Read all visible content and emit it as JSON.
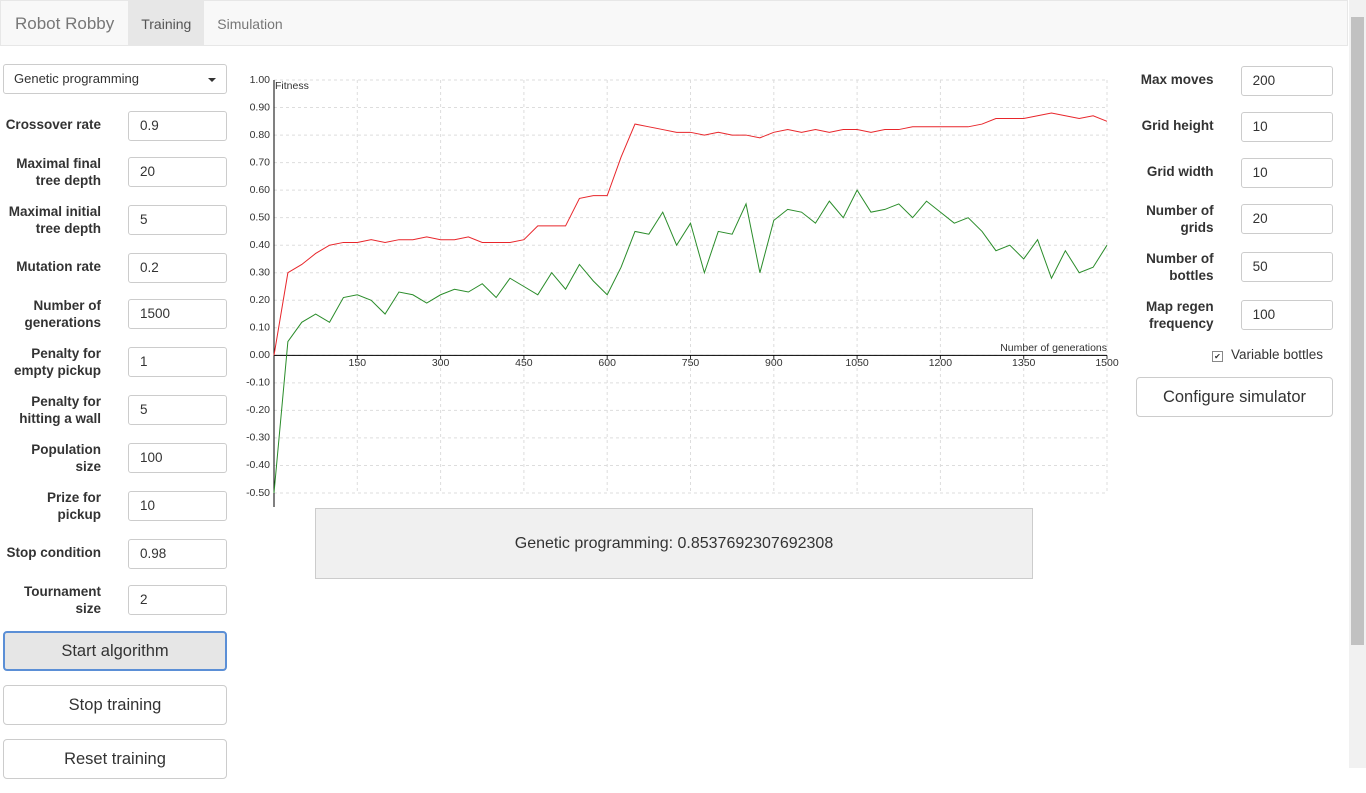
{
  "navbar": {
    "brand": "Robot Robby",
    "tabs": [
      "Training",
      "Simulation"
    ]
  },
  "algorithm_select": "Genetic programming",
  "left_params": [
    [
      "Crossover rate",
      "0.9"
    ],
    [
      "Maximal final tree depth",
      "20"
    ],
    [
      "Maximal initial tree depth",
      "5"
    ],
    [
      "Mutation rate",
      "0.2"
    ],
    [
      "Number of generations",
      "1500"
    ],
    [
      "Penalty for empty pickup",
      "1"
    ],
    [
      "Penalty for hitting a wall",
      "5"
    ],
    [
      "Population size",
      "100"
    ],
    [
      "Prize for pickup",
      "10"
    ],
    [
      "Stop condition",
      "0.98"
    ],
    [
      "Tournament size",
      "2"
    ]
  ],
  "left_buttons": [
    "Start algorithm",
    "Stop training",
    "Reset training"
  ],
  "right_params": [
    [
      "Max moves",
      "200"
    ],
    [
      "Grid height",
      "10"
    ],
    [
      "Grid width",
      "10"
    ],
    [
      "Number of grids",
      "20"
    ],
    [
      "Number of bottles",
      "50"
    ],
    [
      "Map regen frequency",
      "100"
    ]
  ],
  "checkbox": "Variable bottles",
  "right_button": "Configure simulator",
  "result": "Genetic programming: 0.8537692307692308",
  "chart_data": {
    "type": "line",
    "y_label": "Fitness",
    "x_label": "Number of generations",
    "xlim": [
      0,
      1500
    ],
    "ylim": [
      -0.5,
      1.0
    ],
    "xticks": [
      150,
      300,
      450,
      600,
      750,
      900,
      1050,
      1200,
      1350,
      1500
    ],
    "yticks": [
      {
        "value": -0.5,
        "label": "-0.50"
      },
      {
        "value": -0.4,
        "label": "-0.40"
      },
      {
        "value": -0.3,
        "label": "-0.30"
      },
      {
        "value": -0.2,
        "label": "-0.20"
      },
      {
        "value": -0.1,
        "label": "-0.10"
      },
      {
        "value": 0,
        "label": "0.00"
      },
      {
        "value": 0.1,
        "label": "0.10"
      },
      {
        "value": 0.2,
        "label": "0.20"
      },
      {
        "value": 0.3,
        "label": "0.30"
      },
      {
        "value": 0.4,
        "label": "0.40"
      },
      {
        "value": 0.5,
        "label": "0.50"
      },
      {
        "value": 0.6,
        "label": "0.60"
      },
      {
        "value": 0.7,
        "label": "0.70"
      },
      {
        "value": 0.8,
        "label": "0.80"
      },
      {
        "value": 0.9,
        "label": "0.90"
      },
      {
        "value": 1.0,
        "label": "1.00"
      }
    ],
    "grid": true,
    "x": [
      0,
      25,
      50,
      75,
      100,
      125,
      150,
      175,
      200,
      225,
      250,
      275,
      300,
      325,
      350,
      375,
      400,
      425,
      450,
      475,
      500,
      525,
      550,
      575,
      600,
      625,
      650,
      675,
      700,
      725,
      750,
      775,
      800,
      825,
      850,
      875,
      900,
      925,
      950,
      975,
      1000,
      1025,
      1050,
      1075,
      1100,
      1125,
      1150,
      1175,
      1200,
      1225,
      1250,
      1275,
      1300,
      1325,
      1350,
      1375,
      1400,
      1425,
      1450,
      1475,
      1500
    ],
    "series": [
      {
        "color": "#e8262b",
        "values": [
          0.0,
          0.3,
          0.33,
          0.37,
          0.4,
          0.41,
          0.41,
          0.42,
          0.41,
          0.42,
          0.42,
          0.43,
          0.42,
          0.42,
          0.43,
          0.41,
          0.41,
          0.41,
          0.42,
          0.47,
          0.47,
          0.47,
          0.57,
          0.58,
          0.58,
          0.72,
          0.84,
          0.83,
          0.82,
          0.81,
          0.81,
          0.8,
          0.81,
          0.8,
          0.8,
          0.79,
          0.81,
          0.82,
          0.81,
          0.82,
          0.81,
          0.82,
          0.82,
          0.81,
          0.82,
          0.82,
          0.83,
          0.83,
          0.83,
          0.83,
          0.83,
          0.84,
          0.86,
          0.86,
          0.86,
          0.87,
          0.88,
          0.87,
          0.86,
          0.87,
          0.85
        ]
      },
      {
        "color": "#2a8c2a",
        "values": [
          -0.5,
          0.05,
          0.12,
          0.15,
          0.12,
          0.21,
          0.22,
          0.2,
          0.15,
          0.23,
          0.22,
          0.19,
          0.22,
          0.24,
          0.23,
          0.26,
          0.21,
          0.28,
          0.25,
          0.22,
          0.3,
          0.24,
          0.33,
          0.27,
          0.22,
          0.32,
          0.45,
          0.44,
          0.52,
          0.4,
          0.48,
          0.3,
          0.45,
          0.44,
          0.55,
          0.3,
          0.49,
          0.53,
          0.52,
          0.48,
          0.56,
          0.5,
          0.6,
          0.52,
          0.53,
          0.55,
          0.5,
          0.56,
          0.52,
          0.48,
          0.5,
          0.45,
          0.38,
          0.4,
          0.35,
          0.42,
          0.28,
          0.38,
          0.3,
          0.32,
          0.4
        ]
      }
    ]
  }
}
